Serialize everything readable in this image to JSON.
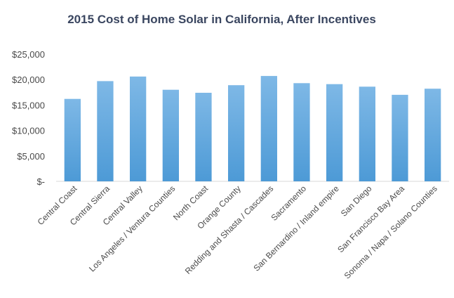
{
  "chart_data": {
    "type": "bar",
    "title": "2015 Cost of Home Solar in California, After Incentives",
    "xlabel": "",
    "ylabel": "",
    "ylim": [
      0,
      25000
    ],
    "yticks": [
      0,
      5000,
      10000,
      15000,
      20000,
      25000
    ],
    "ytick_labels": [
      "$-",
      "$5,000",
      "$10,000",
      "$15,000",
      "$20,000",
      "$25,000"
    ],
    "grid": false,
    "legend": "none",
    "categories": [
      "Central Coast",
      "Central Sierra",
      "Central Valley",
      "Los Angeles / Ventura Counties",
      "North Coast",
      "Orange County",
      "Redding and Shasta / Cascades",
      "Sacramento",
      "San Bernardino / Inland empire",
      "San Diego",
      "San Francisco Bay Area",
      "Sonoma / Napa / Solano Counties"
    ],
    "values": [
      16200,
      19700,
      20600,
      18000,
      17400,
      18900,
      20700,
      19300,
      19100,
      18600,
      17000,
      18200
    ],
    "colors": {
      "bar_top": "#7eb8e6",
      "bar_bottom": "#4d9ad6",
      "title": "#3a4660",
      "text": "#4a4a4a"
    }
  }
}
